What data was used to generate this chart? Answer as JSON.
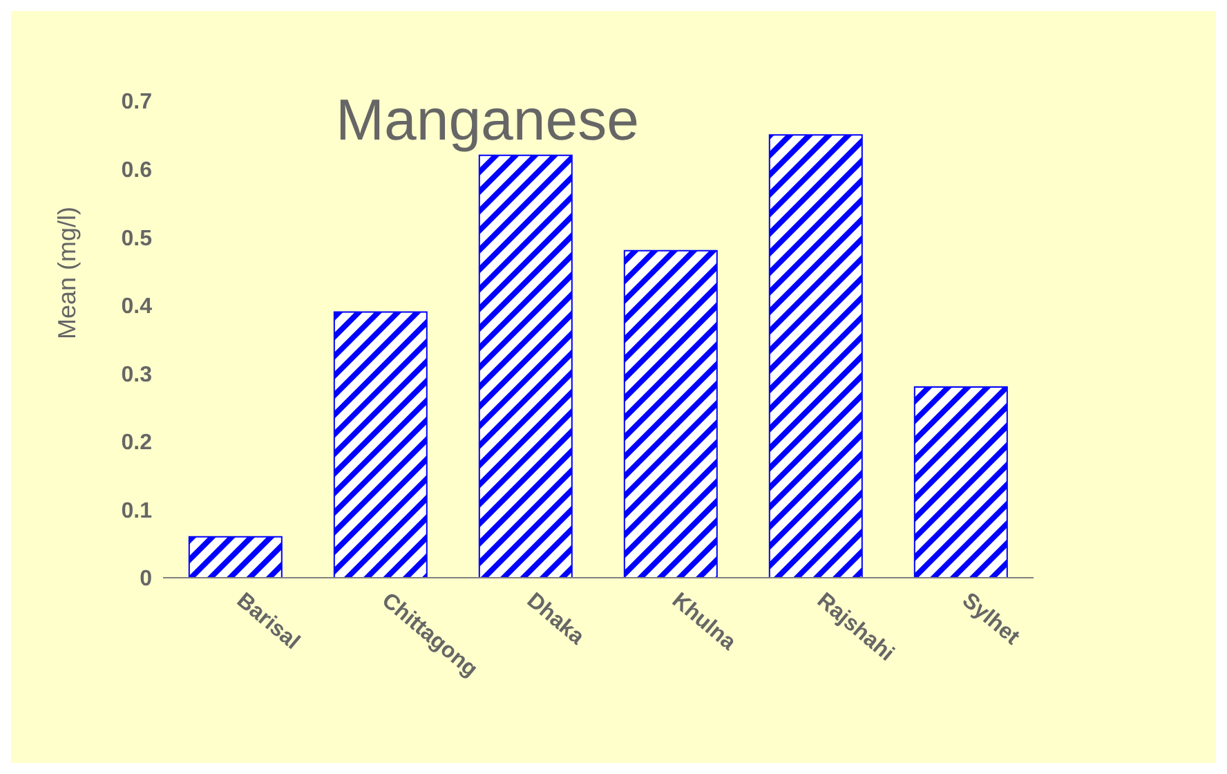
{
  "chart_data": {
    "type": "bar",
    "title": "Manganese",
    "ylabel": "Mean (mg/l)",
    "categories": [
      "Barisal",
      "Chittagong",
      "Dhaka",
      "Khulna",
      "Rajshahi",
      "Sylhet"
    ],
    "values": [
      0.06,
      0.39,
      0.62,
      0.48,
      0.65,
      0.28
    ],
    "color": "#0000ff",
    "ylim": [
      0,
      0.7
    ],
    "yticks": [
      0,
      0.1,
      0.2,
      0.3,
      0.4,
      0.5,
      0.6,
      0.7
    ],
    "grid": false
  }
}
